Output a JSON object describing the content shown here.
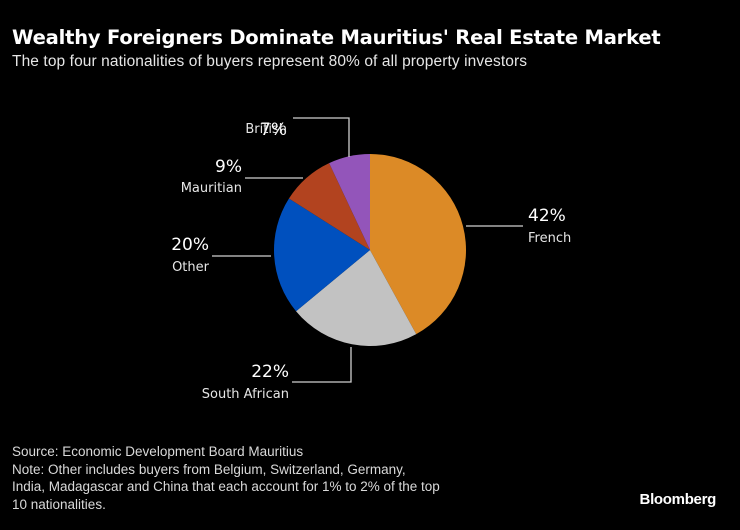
{
  "header": {
    "title": "Wealthy Foreigners Dominate Mauritius' Real Estate Market",
    "subtitle": "The top four nationalities of buyers represent 80% of all property investors"
  },
  "chart_data": {
    "type": "pie",
    "title": "Wealthy Foreigners Dominate Mauritius' Real Estate Market",
    "subtitle": "The top four nationalities of buyers represent 80% of all property investors",
    "categories": [
      "French",
      "South African",
      "Other",
      "Mauritian",
      "British"
    ],
    "values": [
      42,
      22,
      20,
      9,
      7
    ],
    "unit": "%",
    "colors": [
      "#DC8A26",
      "#C2C2C2",
      "#0050BE",
      "#B2431F",
      "#9355BA"
    ],
    "start_angle": "12 o'clock, clockwise",
    "labels": [
      {
        "name": "French",
        "pct": "42%"
      },
      {
        "name": "South African",
        "pct": "22%"
      },
      {
        "name": "Other",
        "pct": "20%"
      },
      {
        "name": "Mauritian",
        "pct": "9%"
      },
      {
        "name": "British",
        "pct": "7%"
      }
    ]
  },
  "footer": {
    "source": "Source: Economic Development Board Mauritius",
    "note_line1": "Note: Other includes buyers from Belgium, Switzerland, Germany,",
    "note_line2": "India, Madagascar and China that each account for 1% to 2% of the top",
    "note_line3": "10 nationalities.",
    "brand": "Bloomberg"
  }
}
